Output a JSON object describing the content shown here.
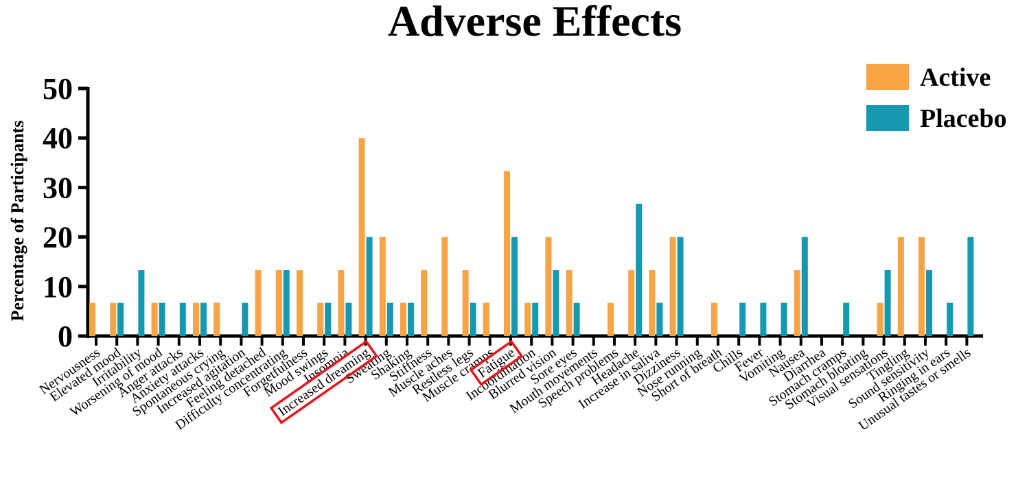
{
  "chart_data": {
    "type": "bar",
    "title": "Adverse Effects",
    "xlabel": "",
    "ylabel": "Percentage of Participants",
    "ylim": [
      0,
      50
    ],
    "yticks": [
      "0",
      "10",
      "20",
      "30",
      "40",
      "50"
    ],
    "legend_position": "top-right",
    "colors": {
      "Active": "#F9A444",
      "Placebo": "#1499B1",
      "highlight": "#E8141B"
    },
    "highlighted": [
      "Increased dreaming",
      "Fatigue"
    ],
    "categories": [
      "Nervousness",
      "Elevated mood",
      "Irritability",
      "Worsening of mood",
      "Anger attacks",
      "Anxiety attacks",
      "Spontaneous crying",
      "Increased agitation",
      "Feeling detached",
      "Difficulty concentrating",
      "Forgetfulness",
      "Mood swings",
      "Insomnia",
      "Increased dreaming",
      "Sweating",
      "Shaking",
      "Stiffness",
      "Muscle aches",
      "Restless legs",
      "Muscle cramps",
      "Fatigue",
      "Incoordination",
      "Blurred vision",
      "Sore eyes",
      "Mouth movements",
      "Speech problems",
      "Headache",
      "Increase in saliva",
      "Dizziness",
      "Nose running",
      "Short of breath",
      "Chills",
      "Fever",
      "Vomiting",
      "Nausea",
      "Diarrhea",
      "Stomach cramps",
      "Stomach bloating",
      "Visual sensations",
      "Tingling",
      "Sound sensitivity",
      "Ringing in ears",
      "Unusual tastes or smells"
    ],
    "series": [
      {
        "name": "Active",
        "values": [
          6.7,
          6.7,
          0,
          6.7,
          0,
          6.7,
          6.7,
          0,
          13.3,
          13.3,
          13.3,
          6.7,
          13.3,
          40,
          20,
          6.7,
          13.3,
          20,
          13.3,
          6.7,
          33.3,
          6.7,
          20,
          13.3,
          0,
          6.7,
          13.3,
          13.3,
          20,
          0,
          6.7,
          0,
          0,
          0,
          13.3,
          0,
          0,
          0,
          6.7,
          20,
          20,
          0,
          0
        ]
      },
      {
        "name": "Placebo",
        "values": [
          0,
          6.7,
          13.3,
          6.7,
          6.7,
          6.7,
          0,
          6.7,
          0,
          13.3,
          0,
          6.7,
          6.7,
          20,
          6.7,
          6.7,
          0,
          0,
          6.7,
          0,
          20,
          6.7,
          13.3,
          6.7,
          0,
          0,
          26.7,
          6.7,
          20,
          0,
          0,
          6.7,
          6.7,
          6.7,
          20,
          0,
          6.7,
          0,
          13.3,
          0,
          13.3,
          6.7,
          20
        ]
      }
    ]
  }
}
